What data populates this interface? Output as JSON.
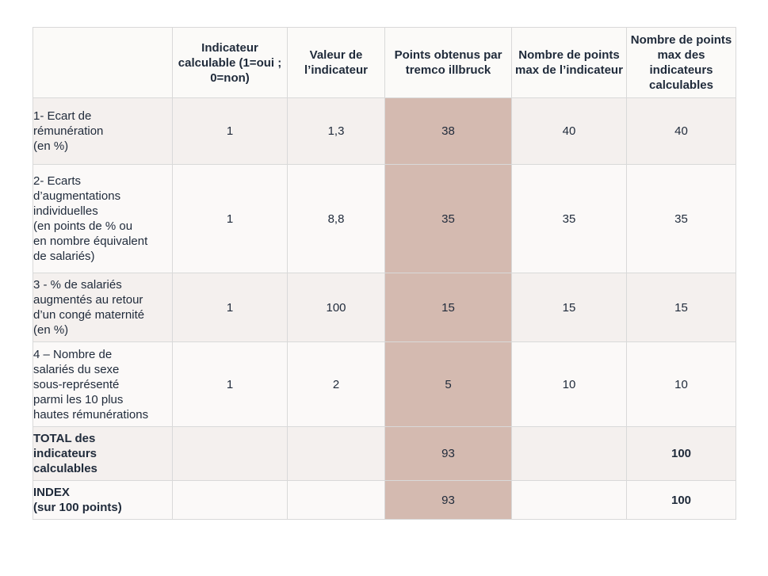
{
  "header": {
    "col_label": "",
    "col1": "Indicateur calculable (1=oui ; 0=non)",
    "col2": "Valeur de l’indicateur",
    "col3": "Points obtenus par tremco illbruck",
    "col4": "Nombre de points max de l’indicateur",
    "col5": "Nombre de points max des indicateurs calculables"
  },
  "rows": [
    {
      "label": "1- Ecart de\nrémunération\n(en %)",
      "calculable": "1",
      "valeur": "1,3",
      "points": "38",
      "max_ind": "40",
      "max_calc": "40"
    },
    {
      "label": "2- Ecarts\nd’augmentations\nindividuelles\n(en points de % ou\nen nombre équivalent\nde salariés)",
      "calculable": "1",
      "valeur": "8,8",
      "points": "35",
      "max_ind": "35",
      "max_calc": "35"
    },
    {
      "label": "3 - % de salariés\naugmentés au retour\nd’un congé maternité\n(en %)",
      "calculable": "1",
      "valeur": "100",
      "points": "15",
      "max_ind": "15",
      "max_calc": "15"
    },
    {
      "label": "4 – Nombre de\nsalariés du sexe\nsous-représenté\nparmi les 10 plus\nhautes rémunérations",
      "calculable": "1",
      "valeur": "2",
      "points": "5",
      "max_ind": "10",
      "max_calc": "10"
    }
  ],
  "total": {
    "label": "TOTAL des\nindicateurs\ncalculables",
    "points": "93",
    "max_calc": "100"
  },
  "index": {
    "label": "INDEX\n(sur 100 points)",
    "points": "93",
    "max_calc": "100"
  },
  "colors": {
    "points_column": "#d4bab0",
    "row_alt": "#f4f0ee",
    "row_normal": "#fbf9f8",
    "border": "#d9d9d9"
  }
}
